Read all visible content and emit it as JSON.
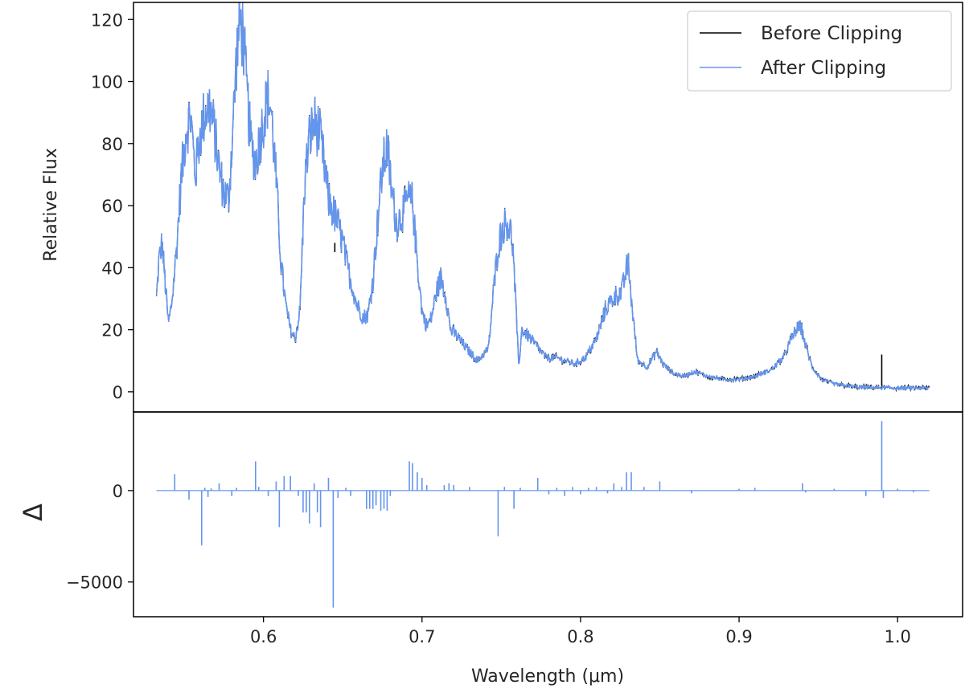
{
  "chart_data": [
    {
      "type": "line",
      "panel": "top",
      "title": "",
      "xlabel": "",
      "ylabel": "Relative Flux",
      "xlim": [
        0.518,
        1.041
      ],
      "ylim": [
        -6.5,
        125.5
      ],
      "yticks": [
        0,
        20,
        40,
        60,
        80,
        100,
        120
      ],
      "legend": {
        "placement": "top-right",
        "entries": [
          "Before Clipping",
          "After Clipping"
        ]
      },
      "series": [
        {
          "name": "Before Clipping",
          "color": "#000000",
          "description_points": [
            [
              0.532,
              33
            ],
            [
              0.545,
              45
            ],
            [
              0.555,
              85
            ],
            [
              0.565,
              88
            ],
            [
              0.585,
              118
            ],
            [
              0.602,
              95
            ],
            [
              0.618,
              18
            ],
            [
              0.631,
              87
            ],
            [
              0.645,
              45
            ],
            [
              0.655,
              28
            ],
            [
              0.678,
              80
            ],
            [
              0.692,
              62
            ],
            [
              0.712,
              36
            ],
            [
              0.752,
              55
            ],
            [
              0.762,
              20
            ],
            [
              0.79,
              11
            ],
            [
              0.83,
              43
            ],
            [
              0.85,
              12
            ],
            [
              0.9,
              4
            ],
            [
              0.94,
              21
            ],
            [
              0.955,
              3
            ],
            [
              0.99,
              12
            ],
            [
              1.02,
              1.5
            ]
          ],
          "spikes": [
            {
              "x": 0.645,
              "top": 48,
              "bottom": 45
            },
            {
              "x": 0.99,
              "top": 12,
              "bottom": 1
            }
          ]
        },
        {
          "name": "After Clipping",
          "color": "#6495ed",
          "points": [
            [
              0.5325,
              30
            ],
            [
              0.534,
              42
            ],
            [
              0.536,
              48
            ],
            [
              0.538,
              35
            ],
            [
              0.54,
              22
            ],
            [
              0.542,
              28
            ],
            [
              0.545,
              45
            ],
            [
              0.548,
              68
            ],
            [
              0.551,
              84
            ],
            [
              0.554,
              89
            ],
            [
              0.557,
              70
            ],
            [
              0.56,
              83
            ],
            [
              0.563,
              90
            ],
            [
              0.566,
              92
            ],
            [
              0.569,
              84
            ],
            [
              0.572,
              72
            ],
            [
              0.575,
              64
            ],
            [
              0.578,
              62
            ],
            [
              0.581,
              88
            ],
            [
              0.583,
              108
            ],
            [
              0.585,
              119
            ],
            [
              0.587,
              116
            ],
            [
              0.589,
              100
            ],
            [
              0.592,
              80
            ],
            [
              0.595,
              74
            ],
            [
              0.598,
              82
            ],
            [
              0.601,
              91
            ],
            [
              0.603,
              95
            ],
            [
              0.605,
              90
            ],
            [
              0.608,
              68
            ],
            [
              0.611,
              42
            ],
            [
              0.614,
              28
            ],
            [
              0.617,
              20
            ],
            [
              0.62,
              17
            ],
            [
              0.623,
              26
            ],
            [
              0.626,
              68
            ],
            [
              0.629,
              82
            ],
            [
              0.632,
              87
            ],
            [
              0.635,
              84
            ],
            [
              0.638,
              74
            ],
            [
              0.641,
              62
            ],
            [
              0.644,
              58
            ],
            [
              0.647,
              54
            ],
            [
              0.65,
              48
            ],
            [
              0.653,
              40
            ],
            [
              0.656,
              34
            ],
            [
              0.659,
              28
            ],
            [
              0.663,
              24
            ],
            [
              0.666,
              25
            ],
            [
              0.669,
              36
            ],
            [
              0.672,
              55
            ],
            [
              0.675,
              72
            ],
            [
              0.678,
              79
            ],
            [
              0.681,
              64
            ],
            [
              0.684,
              54
            ],
            [
              0.688,
              58
            ],
            [
              0.691,
              62
            ],
            [
              0.694,
              61
            ],
            [
              0.697,
              42
            ],
            [
              0.7,
              26
            ],
            [
              0.703,
              21
            ],
            [
              0.706,
              24
            ],
            [
              0.709,
              32
            ],
            [
              0.712,
              37
            ],
            [
              0.715,
              31
            ],
            [
              0.718,
              20
            ],
            [
              0.722,
              18
            ],
            [
              0.728,
              14
            ],
            [
              0.735,
              10
            ],
            [
              0.742,
              14
            ],
            [
              0.745,
              32
            ],
            [
              0.748,
              47
            ],
            [
              0.751,
              53
            ],
            [
              0.754,
              55
            ],
            [
              0.757,
              49
            ],
            [
              0.759,
              30
            ],
            [
              0.761,
              8
            ],
            [
              0.763,
              20
            ],
            [
              0.767,
              18
            ],
            [
              0.772,
              15
            ],
            [
              0.778,
              11
            ],
            [
              0.785,
              11
            ],
            [
              0.79,
              10
            ],
            [
              0.797,
              9
            ],
            [
              0.803,
              11
            ],
            [
              0.81,
              17
            ],
            [
              0.816,
              27
            ],
            [
              0.822,
              31
            ],
            [
              0.826,
              32
            ],
            [
              0.83,
              42
            ],
            [
              0.832,
              30
            ],
            [
              0.836,
              10
            ],
            [
              0.842,
              8
            ],
            [
              0.848,
              13
            ],
            [
              0.852,
              9
            ],
            [
              0.858,
              6
            ],
            [
              0.865,
              5
            ],
            [
              0.872,
              6.5
            ],
            [
              0.88,
              5
            ],
            [
              0.89,
              4
            ],
            [
              0.9,
              4
            ],
            [
              0.91,
              5
            ],
            [
              0.92,
              7
            ],
            [
              0.928,
              11
            ],
            [
              0.933,
              17
            ],
            [
              0.936,
              20
            ],
            [
              0.939,
              21
            ],
            [
              0.942,
              15
            ],
            [
              0.946,
              8
            ],
            [
              0.952,
              4
            ],
            [
              0.96,
              2.5
            ],
            [
              0.975,
              1.5
            ],
            [
              1.0,
              1.2
            ],
            [
              1.02,
              1.2
            ]
          ]
        }
      ]
    },
    {
      "type": "line",
      "panel": "bottom",
      "title": "",
      "xlabel": "Wavelength (μm)",
      "ylabel": "Δ",
      "xlim": [
        0.518,
        1.041
      ],
      "ylim": [
        -6900,
        4300
      ],
      "xticks": [
        "0.6",
        "0.7",
        "0.8",
        "0.9",
        "1.0"
      ],
      "xtick_values": [
        0.6,
        0.7,
        0.8,
        0.9,
        1.0
      ],
      "yticks": [
        "0",
        "−5000"
      ],
      "ytick_values": [
        0,
        -5000
      ],
      "series": [
        {
          "name": "Δ",
          "color": "#6495ed",
          "baseline": 0,
          "spikes": [
            [
              0.544,
              900
            ],
            [
              0.553,
              -500
            ],
            [
              0.561,
              -3000
            ],
            [
              0.563,
              150
            ],
            [
              0.565,
              -350
            ],
            [
              0.567,
              120
            ],
            [
              0.572,
              400
            ],
            [
              0.58,
              -300
            ],
            [
              0.583,
              150
            ],
            [
              0.595,
              1600
            ],
            [
              0.597,
              200
            ],
            [
              0.603,
              -300
            ],
            [
              0.608,
              500
            ],
            [
              0.61,
              -2000
            ],
            [
              0.613,
              800
            ],
            [
              0.617,
              800
            ],
            [
              0.622,
              -300
            ],
            [
              0.625,
              -1200
            ],
            [
              0.627,
              -1200
            ],
            [
              0.629,
              -1800
            ],
            [
              0.632,
              400
            ],
            [
              0.634,
              -1200
            ],
            [
              0.636,
              -2000
            ],
            [
              0.641,
              700
            ],
            [
              0.644,
              -6400
            ],
            [
              0.647,
              -400
            ],
            [
              0.652,
              150
            ],
            [
              0.655,
              -300
            ],
            [
              0.665,
              -1000
            ],
            [
              0.667,
              -1000
            ],
            [
              0.669,
              -1000
            ],
            [
              0.671,
              -800
            ],
            [
              0.674,
              -1100
            ],
            [
              0.676,
              -1000
            ],
            [
              0.678,
              -1100
            ],
            [
              0.68,
              -300
            ],
            [
              0.692,
              1600
            ],
            [
              0.694,
              1500
            ],
            [
              0.697,
              1000
            ],
            [
              0.7,
              700
            ],
            [
              0.703,
              300
            ],
            [
              0.714,
              300
            ],
            [
              0.717,
              400
            ],
            [
              0.72,
              300
            ],
            [
              0.73,
              200
            ],
            [
              0.748,
              -2500
            ],
            [
              0.752,
              200
            ],
            [
              0.758,
              -1000
            ],
            [
              0.762,
              150
            ],
            [
              0.773,
              700
            ],
            [
              0.78,
              -200
            ],
            [
              0.785,
              150
            ],
            [
              0.79,
              -300
            ],
            [
              0.795,
              200
            ],
            [
              0.8,
              -200
            ],
            [
              0.805,
              150
            ],
            [
              0.81,
              200
            ],
            [
              0.817,
              -150
            ],
            [
              0.821,
              400
            ],
            [
              0.826,
              200
            ],
            [
              0.829,
              1000
            ],
            [
              0.832,
              1000
            ],
            [
              0.84,
              200
            ],
            [
              0.85,
              500
            ],
            [
              0.87,
              -150
            ],
            [
              0.9,
              100
            ],
            [
              0.91,
              150
            ],
            [
              0.94,
              400
            ],
            [
              0.942,
              -100
            ],
            [
              0.96,
              100
            ],
            [
              0.98,
              -300
            ],
            [
              0.99,
              3800
            ],
            [
              0.991,
              -400
            ],
            [
              1.0,
              100
            ],
            [
              1.01,
              -100
            ]
          ]
        }
      ]
    }
  ]
}
